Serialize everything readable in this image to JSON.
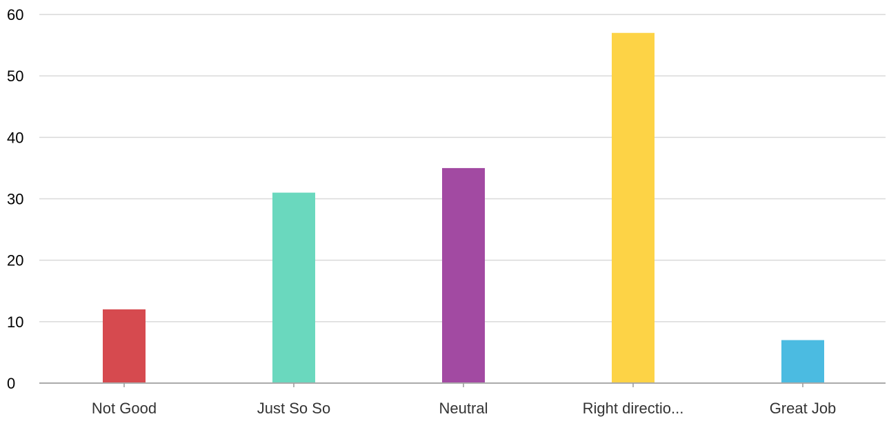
{
  "chart_data": {
    "type": "bar",
    "categories": [
      "Not Good",
      "Just So So",
      "Neutral",
      "Right directio...",
      "Great Job"
    ],
    "values": [
      12,
      31,
      35,
      57,
      7
    ],
    "colors": [
      "#d64a4f",
      "#6ad8be",
      "#a24aa2",
      "#fdd346",
      "#4bbbe1"
    ],
    "ylim": [
      0,
      60
    ],
    "yticks": [
      0,
      10,
      20,
      30,
      40,
      50,
      60
    ],
    "grid": true,
    "legend": "none"
  }
}
